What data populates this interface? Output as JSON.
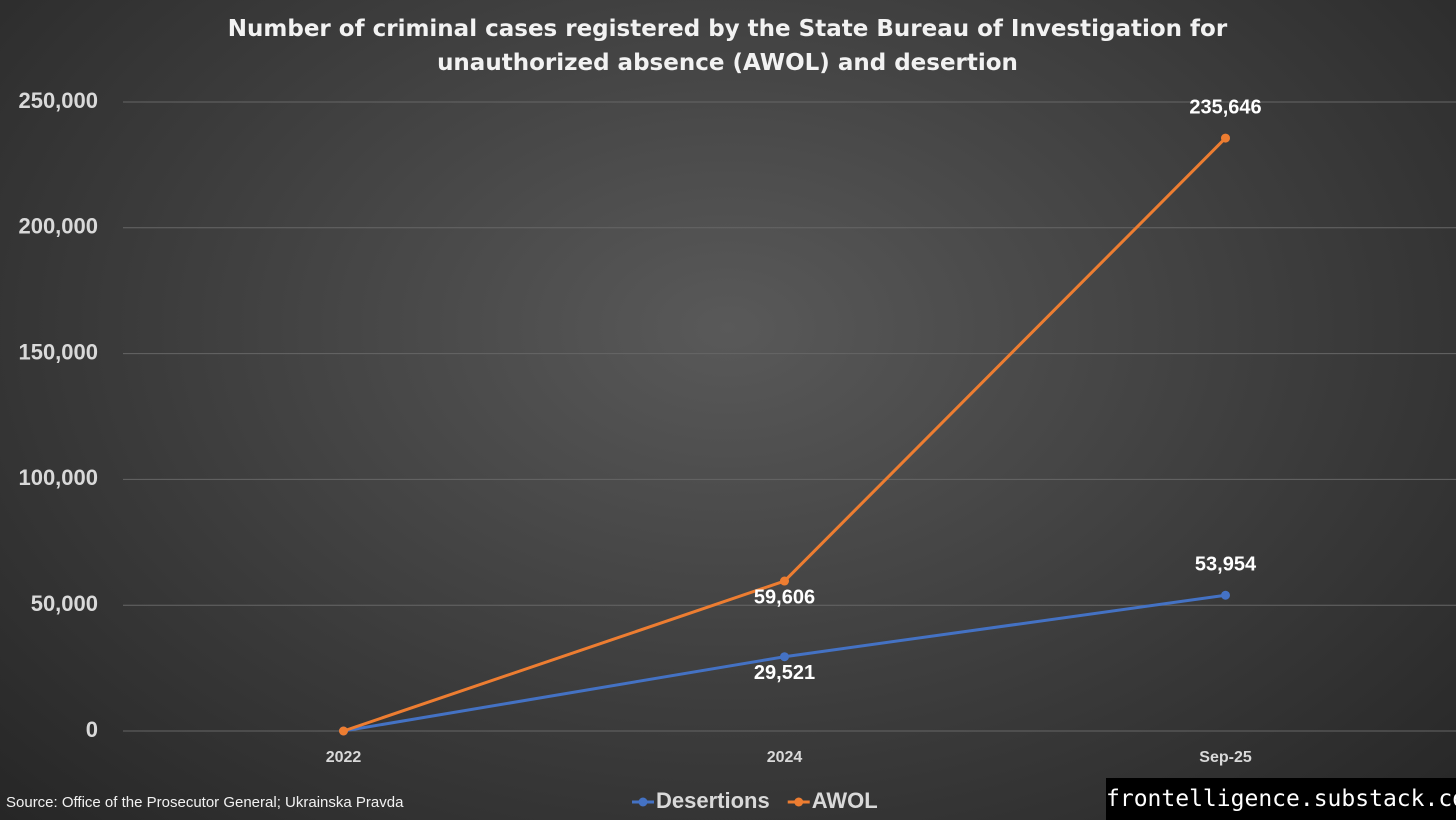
{
  "chart_data": {
    "type": "line",
    "title": "Number of criminal cases registered by the State Bureau of Investigation for unauthorized absence (AWOL)  and desertion",
    "categories": [
      "2022",
      "2024",
      "Sep-25"
    ],
    "series": [
      {
        "name": "Desertions",
        "color": "#4472c4",
        "values": [
          0,
          29521,
          53954
        ],
        "value_labels": [
          null,
          "29,521",
          "53,954"
        ]
      },
      {
        "name": "AWOL",
        "color": "#ed7d31",
        "values": [
          0,
          59606,
          235646
        ],
        "value_labels": [
          null,
          "59,606",
          "235,646"
        ]
      }
    ],
    "ylim": [
      0,
      250000
    ],
    "yticks": [
      0,
      {
        "value": 50000,
        "label": "50,000"
      },
      {
        "value": 100000,
        "label": "100,000"
      },
      {
        "value": 150000,
        "label": "150,000"
      },
      {
        "value": 200000,
        "label": "200,000"
      },
      {
        "value": 250000,
        "label": "250,000"
      }
    ],
    "grid": true,
    "legend": "bottom",
    "source": "Source: Office of the Prosecutor General; Ukrainska Pravda",
    "watermark": "frontelligence.substack.com"
  }
}
